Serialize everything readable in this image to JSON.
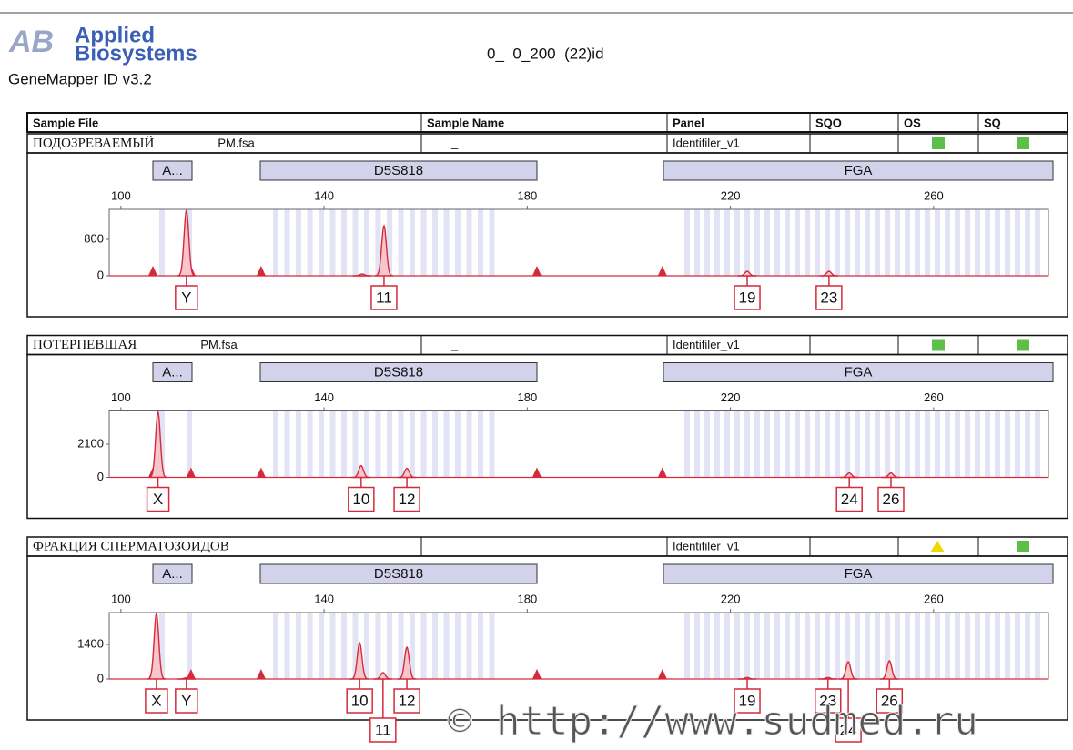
{
  "header": {
    "logo_mark": "AB",
    "logo_line1": "Applied",
    "logo_line2": "Biosystems",
    "product": "GeneMapper ID v3.2",
    "run_title": "0_  0_200  (22)id"
  },
  "columns": [
    "Sample File",
    "Sample Name",
    "Panel",
    "SQO",
    "OS",
    "SQ"
  ],
  "xlim": [
    97.7,
    282.6
  ],
  "xticks": [
    100,
    140,
    180,
    220,
    260
  ],
  "markers": [
    "A...",
    "D5S818",
    "FGA"
  ],
  "standard_peaks": [
    106.3,
    113.8,
    127.6,
    181.9,
    206.6
  ],
  "panels": [
    {
      "sample_label": "ПОДОЗРЕВАЕМЫЙ",
      "sample_file": "PM.fsa",
      "sample_name": "_",
      "panel": "Identifiler_v1",
      "os_flag": "#5cbf4a",
      "sq_flag": "#5cbf4a",
      "ylim": [
        0,
        1460
      ],
      "yticks": [
        0,
        800
      ],
      "peaks": [
        {
          "x": 112.9,
          "height": 1440,
          "allele": "Y"
        },
        {
          "x": 147.5,
          "height": 40
        },
        {
          "x": 151.8,
          "height": 1100,
          "allele": "11"
        },
        {
          "x": 223.3,
          "height": 100,
          "allele": "19"
        },
        {
          "x": 239.4,
          "height": 100,
          "allele": "23"
        }
      ]
    },
    {
      "sample_label": "ПОТЕРПЕВШАЯ",
      "sample_file": "PM.fsa",
      "sample_name": "_",
      "panel": "Identifiler_v1",
      "os_flag": "#5cbf4a",
      "sq_flag": "#5cbf4a",
      "ylim": [
        0,
        4200
      ],
      "yticks": [
        0,
        2100
      ],
      "peaks": [
        {
          "x": 107.3,
          "height": 4140,
          "allele": "X"
        },
        {
          "x": 147.3,
          "height": 740,
          "allele": "10"
        },
        {
          "x": 156.3,
          "height": 570,
          "allele": "12"
        },
        {
          "x": 243.4,
          "height": 280,
          "allele": "24"
        },
        {
          "x": 251.6,
          "height": 280,
          "allele": "26"
        }
      ]
    },
    {
      "sample_label": "ФРАКЦИЯ СПЕРМАТОЗОИДОВ",
      "panel": "Identifiler_v1",
      "os_flag": "#f2d600",
      "sq_flag": "#5cbf4a",
      "ylim": [
        0,
        2690
      ],
      "yticks": [
        0,
        1400
      ],
      "peaks": [
        {
          "x": 107.0,
          "height": 2650,
          "allele": "X"
        },
        {
          "x": 112.9,
          "height": 50,
          "allele": "Y"
        },
        {
          "x": 147.0,
          "height": 1470,
          "allele": "10"
        },
        {
          "x": 151.6,
          "height": 260,
          "allele": "11"
        },
        {
          "x": 156.3,
          "height": 1290,
          "allele": "12"
        },
        {
          "x": 223.3,
          "height": 60,
          "allele": "19"
        },
        {
          "x": 239.2,
          "height": 60,
          "allele": "23"
        },
        {
          "x": 243.2,
          "height": 700,
          "allele": "24"
        },
        {
          "x": 251.3,
          "height": 740,
          "allele": "26"
        }
      ]
    }
  ],
  "watermark": "© http://www.sudmed.ru"
}
